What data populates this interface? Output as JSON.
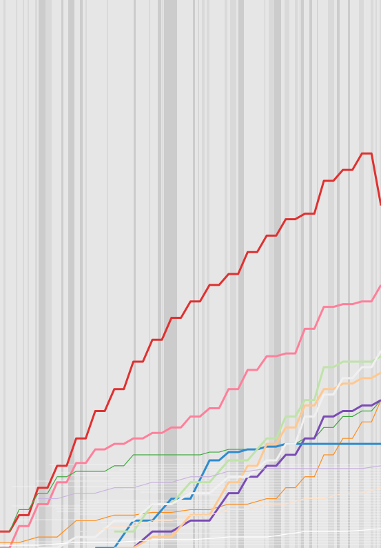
{
  "chart_data": {
    "type": "line",
    "title": "",
    "xlabel": "",
    "ylabel": "",
    "xlim": [
      0,
      100
    ],
    "ylim": [
      0,
      100
    ],
    "grid": false,
    "background": "#e6e6e6",
    "stripe_color": "#cccccc",
    "stripe_alt_color": "#d9d9d9",
    "series": [
      {
        "color": "#e03030",
        "thick": true,
        "points": [
          [
            0,
            3
          ],
          [
            5,
            6
          ],
          [
            10,
            11
          ],
          [
            15,
            15
          ],
          [
            20,
            20
          ],
          [
            25,
            25
          ],
          [
            30,
            29
          ],
          [
            35,
            34
          ],
          [
            40,
            38
          ],
          [
            45,
            42
          ],
          [
            50,
            45
          ],
          [
            55,
            48
          ],
          [
            60,
            50
          ],
          [
            65,
            54
          ],
          [
            70,
            57
          ],
          [
            75,
            60
          ],
          [
            80,
            61
          ],
          [
            85,
            67
          ],
          [
            90,
            69
          ],
          [
            95,
            72
          ],
          [
            100,
            62.5
          ]
        ]
      },
      {
        "color": "#ff7f9a",
        "thick": true,
        "points": [
          [
            0,
            0
          ],
          [
            5,
            4
          ],
          [
            10,
            8
          ],
          [
            15,
            12
          ],
          [
            20,
            15.5
          ],
          [
            25,
            18
          ],
          [
            30,
            19
          ],
          [
            35,
            20
          ],
          [
            40,
            21
          ],
          [
            45,
            22
          ],
          [
            50,
            24
          ],
          [
            55,
            25.5
          ],
          [
            60,
            29
          ],
          [
            65,
            32.5
          ],
          [
            70,
            35
          ],
          [
            75,
            35.5
          ],
          [
            80,
            40
          ],
          [
            85,
            44
          ],
          [
            90,
            44.5
          ],
          [
            95,
            45
          ],
          [
            100,
            48
          ]
        ]
      },
      {
        "color": "#3fa83f",
        "thick": false,
        "points": [
          [
            0,
            3
          ],
          [
            5,
            7
          ],
          [
            10,
            10
          ],
          [
            15,
            13
          ],
          [
            20,
            14
          ],
          [
            25,
            14
          ],
          [
            30,
            15
          ],
          [
            35,
            17
          ],
          [
            40,
            17
          ],
          [
            45,
            17
          ],
          [
            50,
            17
          ],
          [
            55,
            17.5
          ],
          [
            60,
            18
          ],
          [
            65,
            18
          ],
          [
            70,
            18.5
          ],
          [
            75,
            19
          ],
          [
            80,
            20
          ],
          [
            85,
            22
          ],
          [
            90,
            24
          ],
          [
            95,
            25
          ],
          [
            100,
            27
          ]
        ]
      },
      {
        "color": "#ff8c1a",
        "thick": false,
        "points": [
          [
            0,
            1
          ],
          [
            10,
            2
          ],
          [
            20,
            5
          ],
          [
            30,
            6
          ],
          [
            40,
            6.5
          ],
          [
            50,
            7
          ],
          [
            60,
            8
          ],
          [
            70,
            9
          ],
          [
            75,
            11
          ],
          [
            80,
            13
          ],
          [
            85,
            17
          ],
          [
            90,
            20
          ],
          [
            95,
            23
          ],
          [
            100,
            27
          ]
        ]
      },
      {
        "color": "#7a4bb5",
        "thick": true,
        "points": [
          [
            30,
            0
          ],
          [
            40,
            3
          ],
          [
            50,
            5
          ],
          [
            60,
            10
          ],
          [
            65,
            13
          ],
          [
            70,
            15
          ],
          [
            75,
            17
          ],
          [
            80,
            20
          ],
          [
            85,
            24
          ],
          [
            90,
            25
          ],
          [
            95,
            26
          ],
          [
            100,
            27
          ]
        ]
      },
      {
        "color": "#2f8bcc",
        "thick": true,
        "points": [
          [
            25,
            0
          ],
          [
            35,
            5
          ],
          [
            45,
            9
          ],
          [
            55,
            16
          ],
          [
            60,
            17.5
          ],
          [
            65,
            18
          ],
          [
            70,
            18.5
          ],
          [
            75,
            19
          ],
          [
            80,
            19
          ],
          [
            85,
            19
          ],
          [
            90,
            19
          ],
          [
            100,
            19
          ]
        ]
      },
      {
        "color": "#bfe3a8",
        "thick": true,
        "points": [
          [
            30,
            3
          ],
          [
            40,
            8
          ],
          [
            50,
            12
          ],
          [
            60,
            16
          ],
          [
            70,
            20
          ],
          [
            75,
            24
          ],
          [
            80,
            27
          ],
          [
            85,
            33
          ],
          [
            90,
            34
          ],
          [
            95,
            34
          ],
          [
            100,
            35
          ]
        ]
      },
      {
        "color": "#ffc890",
        "thick": true,
        "points": [
          [
            30,
            0
          ],
          [
            40,
            2
          ],
          [
            50,
            6
          ],
          [
            60,
            12
          ],
          [
            65,
            15
          ],
          [
            70,
            19
          ],
          [
            75,
            22
          ],
          [
            80,
            26
          ],
          [
            85,
            29
          ],
          [
            90,
            30
          ],
          [
            95,
            31
          ],
          [
            100,
            32
          ]
        ]
      },
      {
        "color": "#f0f0f0",
        "thick": true,
        "points": [
          [
            10,
            0
          ],
          [
            20,
            2
          ],
          [
            30,
            5
          ],
          [
            40,
            8
          ],
          [
            50,
            10
          ],
          [
            60,
            13
          ],
          [
            70,
            16
          ],
          [
            75,
            19
          ],
          [
            80,
            24
          ],
          [
            85,
            28
          ],
          [
            90,
            31
          ],
          [
            95,
            33
          ],
          [
            100,
            36
          ]
        ]
      },
      {
        "color": "#c9b3e0",
        "thick": false,
        "points": [
          [
            10,
            9
          ],
          [
            20,
            10
          ],
          [
            30,
            11
          ],
          [
            40,
            12
          ],
          [
            50,
            13
          ],
          [
            60,
            14
          ],
          [
            70,
            14.5
          ],
          [
            80,
            14.5
          ],
          [
            90,
            14.5
          ],
          [
            100,
            15
          ]
        ]
      },
      {
        "color": "#ffe0c8",
        "thick": false,
        "points": [
          [
            20,
            3
          ],
          [
            30,
            4
          ],
          [
            40,
            5
          ],
          [
            50,
            6
          ],
          [
            60,
            7
          ],
          [
            70,
            8
          ],
          [
            80,
            9
          ],
          [
            90,
            10
          ],
          [
            100,
            11
          ]
        ]
      },
      {
        "color": "#ffffff",
        "thick": false,
        "points": [
          [
            0,
            0.5
          ],
          [
            20,
            1
          ],
          [
            40,
            1.5
          ],
          [
            60,
            2
          ],
          [
            80,
            3
          ],
          [
            100,
            3.5
          ]
        ]
      }
    ]
  }
}
